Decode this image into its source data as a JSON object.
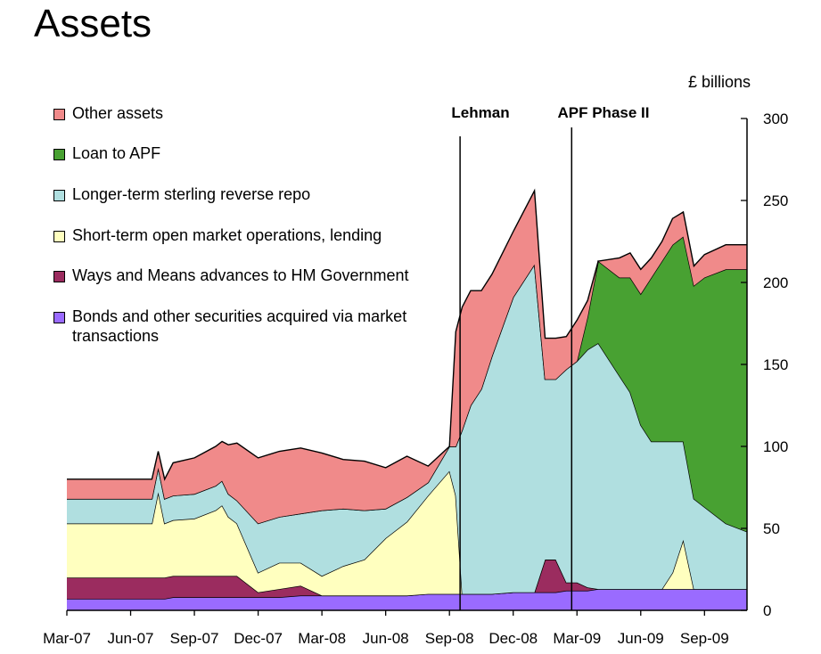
{
  "chart_data": {
    "type": "area",
    "stacked": true,
    "title": "Assets",
    "unit_label": "£ billions",
    "ylim": [
      0,
      300
    ],
    "yticks": [
      0,
      50,
      100,
      150,
      200,
      250,
      300
    ],
    "y_axis_side": "right",
    "xlim": [
      "2007-03",
      "2009-11"
    ],
    "xticks": [
      "Mar-07",
      "Jun-07",
      "Sep-07",
      "Dec-07",
      "Mar-08",
      "Jun-08",
      "Sep-08",
      "Dec-08",
      "Mar-09",
      "Jun-09",
      "Sep-09"
    ],
    "legend_position": "top-left",
    "grid": false,
    "events": [
      {
        "label": "Lehman",
        "x": 18.5
      },
      {
        "label": "APF Phase II",
        "x": 23.75
      }
    ],
    "x": [
      0,
      1,
      2,
      3,
      4,
      4.3,
      4.6,
      5,
      6,
      7,
      7.3,
      7.6,
      8,
      9,
      10,
      11,
      12,
      13,
      14,
      15,
      16,
      17,
      18,
      18.3,
      18.6,
      19,
      19.5,
      20,
      21,
      22,
      22.5,
      23,
      23.5,
      24,
      24.5,
      25,
      26,
      26.5,
      27,
      27.5,
      28,
      28.5,
      29,
      29.5,
      30,
      31,
      32
    ],
    "series": [
      {
        "name": "Bonds and other securities acquired via market transactions",
        "color": "#9a6bff",
        "values": [
          7,
          7,
          7,
          7,
          7,
          7,
          7,
          8,
          8,
          8,
          8,
          8,
          8,
          8,
          8,
          9,
          9,
          9,
          9,
          9,
          9,
          10,
          10,
          10,
          10,
          10,
          10,
          10,
          11,
          11,
          11,
          11,
          12,
          12,
          12,
          13,
          13,
          13,
          13,
          13,
          13,
          13,
          13,
          13,
          13,
          13,
          13
        ]
      },
      {
        "name": "Ways and Means advances to HM Government",
        "color": "#9b2c5f",
        "values": [
          13,
          13,
          13,
          13,
          13,
          13,
          13,
          13,
          13,
          13,
          13,
          13,
          13,
          3,
          5,
          6,
          0,
          0,
          0,
          0,
          0,
          0,
          0,
          0,
          0,
          0,
          0,
          0,
          0,
          0,
          20,
          20,
          5,
          5,
          2,
          0,
          0,
          0,
          0,
          0,
          0,
          0,
          0,
          0,
          0,
          0,
          0
        ]
      },
      {
        "name": "Short-term open market operations, lending",
        "color": "#ffffbf",
        "values": [
          33,
          33,
          33,
          33,
          33,
          52,
          33,
          34,
          35,
          40,
          43,
          36,
          32,
          12,
          16,
          14,
          12,
          18,
          22,
          35,
          45,
          60,
          75,
          60,
          0,
          0,
          0,
          0,
          0,
          0,
          0,
          0,
          0,
          0,
          0,
          0,
          0,
          0,
          0,
          0,
          0,
          10,
          30,
          0,
          0,
          0,
          0
        ]
      },
      {
        "name": "Longer-term sterling reverse repo",
        "color": "#b0dfe0",
        "values": [
          15,
          15,
          15,
          15,
          15,
          15,
          15,
          15,
          15,
          15,
          15,
          14,
          14,
          30,
          28,
          30,
          40,
          35,
          30,
          18,
          15,
          8,
          15,
          30,
          100,
          115,
          125,
          145,
          180,
          200,
          110,
          110,
          130,
          135,
          145,
          150,
          130,
          120,
          100,
          90,
          90,
          80,
          60,
          55,
          50,
          40,
          35
        ]
      },
      {
        "name": "Loan to APF",
        "color": "#48a132",
        "values": [
          0,
          0,
          0,
          0,
          0,
          0,
          0,
          0,
          0,
          0,
          0,
          0,
          0,
          0,
          0,
          0,
          0,
          0,
          0,
          0,
          0,
          0,
          0,
          0,
          0,
          0,
          0,
          0,
          0,
          0,
          0,
          0,
          0,
          0,
          20,
          50,
          60,
          70,
          80,
          100,
          110,
          120,
          125,
          130,
          140,
          155,
          160
        ]
      },
      {
        "name": "Other assets",
        "color": "#f08a8a",
        "values": [
          12,
          12,
          12,
          12,
          12,
          10,
          12,
          20,
          22,
          24,
          24,
          30,
          35,
          40,
          40,
          40,
          35,
          30,
          30,
          25,
          25,
          10,
          0,
          70,
          75,
          70,
          60,
          50,
          40,
          45,
          25,
          25,
          20,
          25,
          10,
          0,
          12,
          15,
          15,
          12,
          12,
          16,
          15,
          12,
          14,
          15,
          15
        ]
      }
    ]
  }
}
